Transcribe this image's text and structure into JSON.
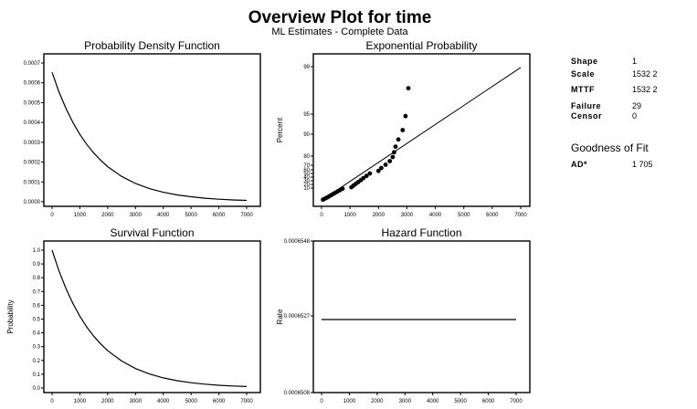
{
  "title": "Overview Plot for time",
  "subtitle": "ML Estimates - Complete Data",
  "stats": [
    {
      "label": "Shape",
      "value": "1"
    },
    {
      "label": "Scale",
      "value": "1532 2"
    },
    {
      "label": "MTTF",
      "value": "1532 2"
    },
    {
      "label": "Failure",
      "value": "29"
    },
    {
      "label": "Censor",
      "value": "0"
    }
  ],
  "goodness_of_fit": {
    "title": "Goodness of Fit",
    "label": "AD*",
    "value": "1 705"
  },
  "chart_data": [
    {
      "id": "pdf",
      "type": "line",
      "title": "Probability Density Function",
      "xlabel": "",
      "ylabel": "",
      "xlim": [
        0,
        7000
      ],
      "ylim": [
        0,
        0.0007
      ],
      "xticks": [
        0,
        1000,
        2000,
        3000,
        4000,
        5000,
        6000,
        7000
      ],
      "xtick_labels": [
        "0",
        "1000",
        "2000",
        "3000",
        "4000",
        "5000",
        "6000",
        "7000"
      ],
      "yticks": [
        0,
        0.0001,
        0.0002,
        0.0003,
        0.0004,
        0.0005,
        0.0006,
        0.0007
      ],
      "ytick_labels": [
        "0.0000",
        "0.0001",
        "0.0002",
        "0.0003",
        "0.0004",
        "0.0005",
        "0.0006",
        "0.0007"
      ],
      "series": [
        {
          "x": [
            0,
            250,
            500,
            750,
            1000,
            1250,
            1500,
            1750,
            2000,
            2500,
            3000,
            3500,
            4000,
            4500,
            5000,
            5500,
            6000,
            6500,
            7000
          ],
          "y": [
            0.000653,
            0.000553,
            0.000471,
            0.0004,
            0.00034,
            0.000289,
            0.000246,
            0.000209,
            0.000177,
            0.000128,
            9.21e-05,
            6.65e-05,
            4.81e-05,
            3.47e-05,
            2.51e-05,
            1.81e-05,
            1.31e-05,
            9.4e-06,
            6.8e-06
          ]
        }
      ]
    },
    {
      "id": "probability",
      "type": "scatter",
      "title": "Exponential Probability",
      "xlabel": "",
      "ylabel": "Percent",
      "xlim": [
        0,
        7000
      ],
      "ylim": [
        1,
        99
      ],
      "scale": "exponential-probability",
      "xticks": [
        0,
        1000,
        2000,
        3000,
        4000,
        5000,
        6000,
        7000
      ],
      "xtick_labels": [
        "0",
        "1000",
        "2000",
        "3000",
        "4000",
        "5000",
        "6000",
        "7000"
      ],
      "yticks": [
        10,
        20,
        30,
        40,
        50,
        60,
        70,
        80,
        90,
        95,
        99
      ],
      "ytick_labels": [
        "10",
        "20",
        "30",
        "40",
        "50",
        "60",
        "70",
        "80",
        "90",
        "95",
        "99"
      ],
      "points": {
        "x": [
          50,
          120,
          190,
          260,
          330,
          400,
          480,
          560,
          650,
          740,
          1050,
          1120,
          1200,
          1290,
          1380,
          1470,
          1580,
          1700,
          2000,
          2100,
          2250,
          2400,
          2500,
          2550,
          2600,
          2700,
          2850,
          2950,
          3050
        ],
        "y": [
          2.4,
          5.8,
          9.2,
          12.6,
          16.1,
          19.5,
          22.9,
          26.3,
          29.7,
          33.1,
          36.5,
          39.9,
          43.4,
          46.8,
          50.2,
          53.6,
          57.0,
          60.4,
          63.8,
          67.2,
          70.7,
          74.1,
          77.5,
          80.9,
          84.3,
          87.7,
          91.1,
          94.5,
          97.9
        ]
      },
      "fit_line": {
        "x": [
          0,
          7000
        ],
        "y": [
          0,
          98.97
        ]
      }
    },
    {
      "id": "survival",
      "type": "line",
      "title": "Survival Function",
      "xlabel": "",
      "ylabel": "Probability",
      "xlim": [
        0,
        7000
      ],
      "ylim": [
        0,
        1
      ],
      "xticks": [
        0,
        1000,
        2000,
        3000,
        4000,
        5000,
        6000,
        7000
      ],
      "xtick_labels": [
        "0",
        "1000",
        "2000",
        "3000",
        "4000",
        "5000",
        "6000",
        "7000"
      ],
      "yticks": [
        0,
        0.1,
        0.2,
        0.3,
        0.4,
        0.5,
        0.6,
        0.7,
        0.8,
        0.9,
        1.0
      ],
      "ytick_labels": [
        "0.0",
        "0.1",
        "0.2",
        "0.3",
        "0.4",
        "0.5",
        "0.6",
        "0.7",
        "0.8",
        "0.9",
        "1.0"
      ],
      "series": [
        {
          "x": [
            0,
            250,
            500,
            750,
            1000,
            1250,
            1500,
            1750,
            2000,
            2500,
            3000,
            3500,
            4000,
            4500,
            5000,
            5500,
            6000,
            6500,
            7000
          ],
          "y": [
            1.0,
            0.849,
            0.722,
            0.613,
            0.521,
            0.442,
            0.376,
            0.319,
            0.271,
            0.196,
            0.141,
            0.102,
            0.0736,
            0.0531,
            0.0383,
            0.0277,
            0.02,
            0.0144,
            0.0104
          ]
        }
      ]
    },
    {
      "id": "hazard",
      "type": "line",
      "title": "Hazard Function",
      "xlabel": "",
      "ylabel": "Rate",
      "xlim": [
        0,
        7000
      ],
      "ylim": [
        0.0006548,
        0.0006508
      ],
      "xticks": [
        0,
        1000,
        2000,
        3000,
        4000,
        5000,
        6000,
        7000
      ],
      "xtick_labels": [
        "0",
        "1000",
        "2000",
        "3000",
        "4000",
        "5000",
        "6000",
        "7000"
      ],
      "ytick_labels": [
        "0.0006548",
        "0.0006527",
        "0.0006508"
      ],
      "series": [
        {
          "x": [
            0,
            7000
          ],
          "y": [
            0.0006527,
            0.0006527
          ]
        }
      ]
    }
  ]
}
